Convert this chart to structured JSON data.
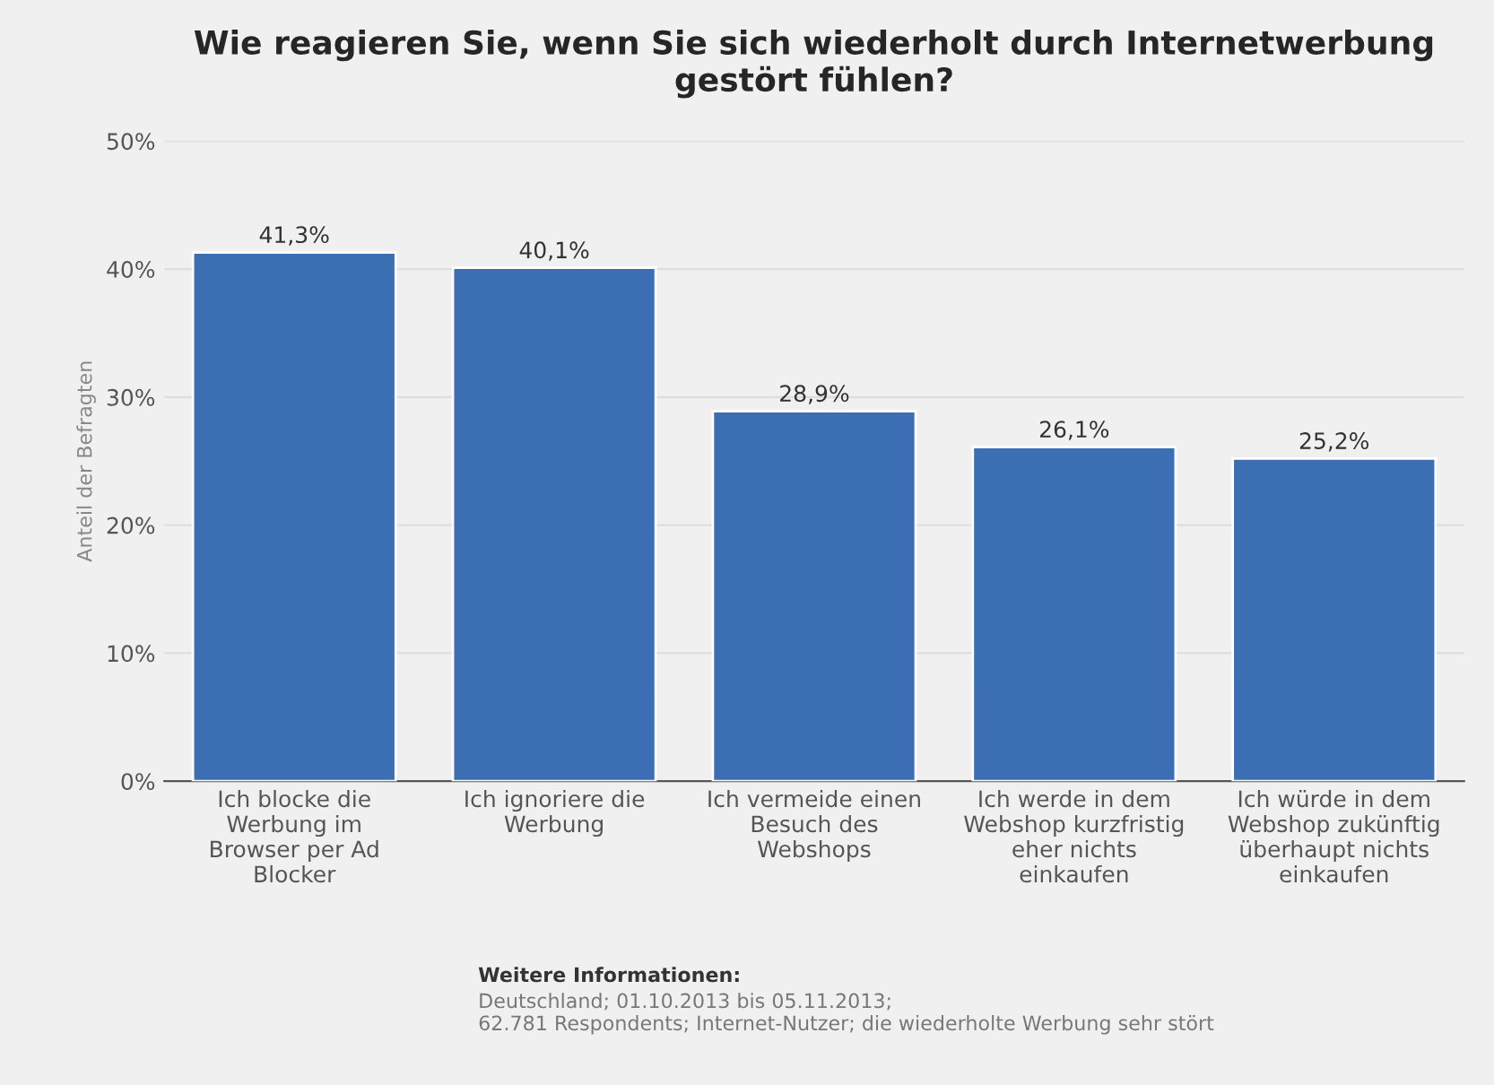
{
  "chart_data": {
    "type": "bar",
    "title": "Wie reagieren Sie, wenn Sie sich wiederholt durch Internetwerbung gestört fühlen?",
    "ylabel": "Anteil der Befragten",
    "categories": [
      "Ich blocke die\nWerbung im\nBrowser per Ad\nBlocker",
      "Ich ignoriere die\nWerbung",
      "Ich vermeide einen\nBesuch des\nWebshops",
      "Ich werde in dem\nWebshop kurzfristig\neher nichts\neinkaufen",
      "Ich würde in dem\nWebshop zukünftig\nüberhaupt nichts\neinkaufen"
    ],
    "values": [
      41.3,
      40.1,
      28.9,
      26.1,
      25.2
    ],
    "value_labels": [
      "41,3%",
      "40,1%",
      "28,9%",
      "26,1%",
      "25,2%"
    ],
    "color": "#3c6eb4",
    "ylim": [
      0,
      50
    ],
    "yticks": [
      {
        "value": 0,
        "label": "0%"
      },
      {
        "value": 10,
        "label": "10%"
      },
      {
        "value": 20,
        "label": "20%"
      },
      {
        "value": 30,
        "label": "30%"
      },
      {
        "value": 40,
        "label": "40%"
      },
      {
        "value": 50,
        "label": "50%"
      }
    ],
    "grid": "y",
    "annotations": [
      "Weitere Informationen:",
      "Deutschland; 01.10.2013 bis 05.11.2013;\n62.781 Respondents; Internet-Nutzer; die wiederholte Werbung sehr stört"
    ]
  }
}
